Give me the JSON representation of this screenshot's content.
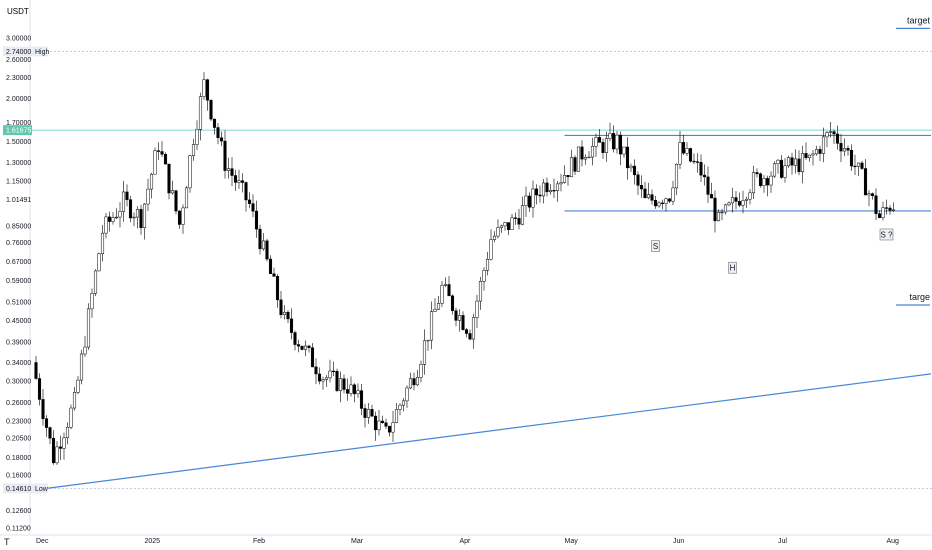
{
  "currency": "USDT",
  "tv_logo": "T",
  "colors": {
    "up_body": "#ffffff",
    "down_body": "#000000",
    "wick": "#000000",
    "trendline": "#4a86d6",
    "resistance_line": "#7fd7dd",
    "resistance_tag": "#62c9b0",
    "dotted": "#b8bcc4"
  },
  "chart_data": {
    "type": "candlestick",
    "title": "",
    "ylabel": "USDT",
    "yscale": "log",
    "ylim": [
      0.108,
      3.2
    ],
    "y_ticks": [
      "0.11200",
      "0.12600",
      "0.14610",
      "0.16000",
      "0.18000",
      "0.20500",
      "0.23000",
      "0.26000",
      "0.30000",
      "0.34000",
      "0.39000",
      "0.45000",
      "0.51000",
      "0.59000",
      "0.67000",
      "0.76000",
      "0.85000",
      "1.01491",
      "1.15000",
      "1.30000",
      "1.50000",
      "1.61675",
      "1.70000",
      "2.00000",
      "2.30000",
      "2.60000",
      "2.74000",
      "3.00000"
    ],
    "x_ticks": [
      "Dec",
      "2025",
      "Feb",
      "Mar",
      "Apr",
      "May",
      "Jun",
      "Jul",
      "Aug"
    ],
    "x_tick_days": [
      0,
      31,
      62,
      90,
      121,
      151,
      182,
      212,
      243
    ],
    "x_start": "2024-12-01",
    "high": {
      "label": "High",
      "value": "2.74000"
    },
    "low": {
      "label": "Low",
      "value": "0.14610"
    },
    "horizontal_level": {
      "value": "1.61675"
    },
    "neckline": {
      "value": 0.94,
      "from": "2025-05-01",
      "to": "2025-08-15"
    },
    "upper_range": {
      "value": 1.56,
      "from": "2025-05-01",
      "to": "2025-08-15"
    },
    "rising_trendline": [
      {
        "date": "2024-12-04",
        "value": 0.1461
      },
      {
        "date": "2025-08-15",
        "value": 0.315
      }
    ],
    "annotations": [
      {
        "text": "target",
        "value": 3.2
      },
      {
        "text": "targe",
        "value": 0.5
      }
    ],
    "pattern_labels": [
      {
        "text": "S",
        "date": "2025-05-27",
        "value": 0.74
      },
      {
        "text": "H",
        "date": "2025-06-18",
        "value": 0.64
      },
      {
        "text": "S ?",
        "date": "2025-08-01",
        "value": 0.8
      }
    ],
    "trend_path": [
      {
        "d": 0,
        "v": 0.34
      },
      {
        "d": 6,
        "v": 0.18
      },
      {
        "d": 12,
        "v": 0.26
      },
      {
        "d": 20,
        "v": 0.82
      },
      {
        "d": 26,
        "v": 1.0
      },
      {
        "d": 31,
        "v": 0.9
      },
      {
        "d": 36,
        "v": 1.47
      },
      {
        "d": 42,
        "v": 0.86
      },
      {
        "d": 46,
        "v": 1.55
      },
      {
        "d": 49,
        "v": 2.2
      },
      {
        "d": 55,
        "v": 1.3
      },
      {
        "d": 62,
        "v": 0.98
      },
      {
        "d": 72,
        "v": 0.45
      },
      {
        "d": 83,
        "v": 0.31
      },
      {
        "d": 90,
        "v": 0.29
      },
      {
        "d": 96,
        "v": 0.24
      },
      {
        "d": 101,
        "v": 0.21
      },
      {
        "d": 110,
        "v": 0.33
      },
      {
        "d": 117,
        "v": 0.56
      },
      {
        "d": 121,
        "v": 0.48
      },
      {
        "d": 125,
        "v": 0.42
      },
      {
        "d": 131,
        "v": 0.78
      },
      {
        "d": 137,
        "v": 0.87
      },
      {
        "d": 146,
        "v": 1.12
      },
      {
        "d": 151,
        "v": 1.18
      },
      {
        "d": 158,
        "v": 1.42
      },
      {
        "d": 167,
        "v": 1.5
      },
      {
        "d": 175,
        "v": 1.0
      },
      {
        "d": 182,
        "v": 1.05
      },
      {
        "d": 185,
        "v": 1.42
      },
      {
        "d": 191,
        "v": 1.22
      },
      {
        "d": 196,
        "v": 0.87
      },
      {
        "d": 200,
        "v": 0.98
      },
      {
        "d": 206,
        "v": 1.15
      },
      {
        "d": 214,
        "v": 1.25
      },
      {
        "d": 222,
        "v": 1.32
      },
      {
        "d": 228,
        "v": 1.6
      },
      {
        "d": 232,
        "v": 1.45
      },
      {
        "d": 238,
        "v": 1.12
      },
      {
        "d": 242,
        "v": 0.9
      },
      {
        "d": 245,
        "v": 0.98
      }
    ]
  }
}
